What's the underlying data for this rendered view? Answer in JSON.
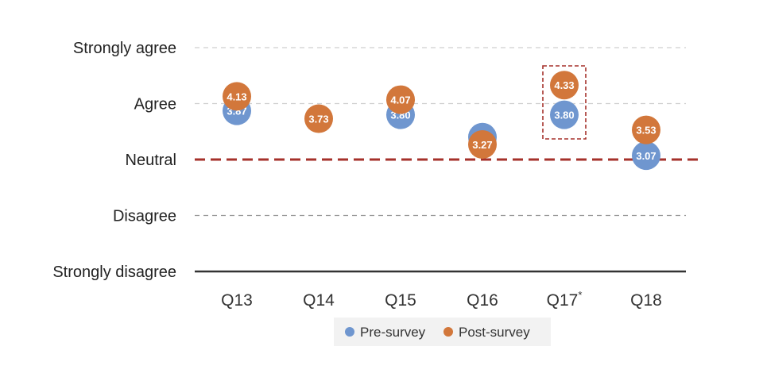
{
  "chart_data": {
    "type": "scatter",
    "categories": [
      "Q13",
      "Q14",
      "Q15",
      "Q16",
      "Q17",
      "Q18"
    ],
    "category_marks": [
      "",
      "",
      "",
      "",
      "*",
      ""
    ],
    "y_scale": [
      {
        "value": 5,
        "label": "Strongly agree"
      },
      {
        "value": 4,
        "label": "Agree"
      },
      {
        "value": 3,
        "label": "Neutral"
      },
      {
        "value": 2,
        "label": "Disagree"
      },
      {
        "value": 1,
        "label": "Strongly disagree"
      }
    ],
    "ylim": [
      1,
      5
    ],
    "series": [
      {
        "name": "Pre-survey",
        "color": "#6f96cf",
        "values": [
          3.87,
          null,
          3.8,
          3.4,
          3.8,
          3.07
        ],
        "labels": [
          "3.87",
          "",
          "3.80",
          "3.40",
          "3.80",
          "3.07"
        ]
      },
      {
        "name": "Post-survey",
        "color": "#d2773b",
        "values": [
          4.13,
          3.73,
          4.07,
          3.27,
          4.33,
          3.53
        ],
        "labels": [
          "4.13",
          "3.73",
          "4.07",
          "3.27",
          "4.33",
          "3.53"
        ]
      }
    ],
    "reference_line": {
      "value": 3,
      "style": "dashed",
      "color": "#a5312b"
    },
    "highlight": {
      "category": "Q17",
      "style": "dashed-box",
      "color": "#a5312b"
    },
    "legend_position": "bottom",
    "grid": true
  }
}
